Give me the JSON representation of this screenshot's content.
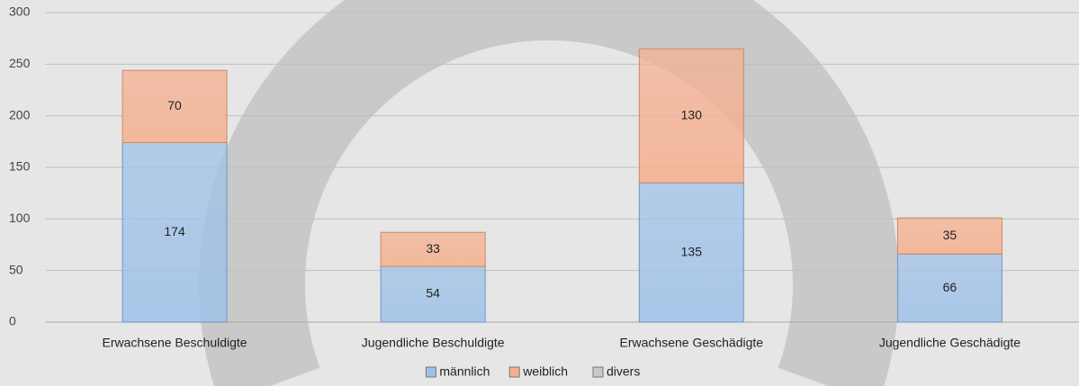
{
  "chart_data": {
    "type": "stacked_bar",
    "categories": [
      "Erwachsene Beschuldigte",
      "Jugendliche Beschuldigte",
      "Erwachsene Geschädigte",
      "Jugendliche Geschädigte"
    ],
    "series": [
      {
        "name": "männlich",
        "color": "#9fc1e8",
        "values": [
          174,
          54,
          135,
          66
        ]
      },
      {
        "name": "weiblich",
        "color": "#f5b08f",
        "values": [
          70,
          33,
          130,
          35
        ]
      },
      {
        "name": "divers",
        "color": "#c8c8c8",
        "values": [
          0,
          0,
          0,
          0
        ]
      }
    ],
    "ylim": [
      0,
      300
    ],
    "yticks": [
      0,
      50,
      100,
      150,
      200,
      250,
      300
    ],
    "grid": true,
    "legend": "bottom"
  }
}
